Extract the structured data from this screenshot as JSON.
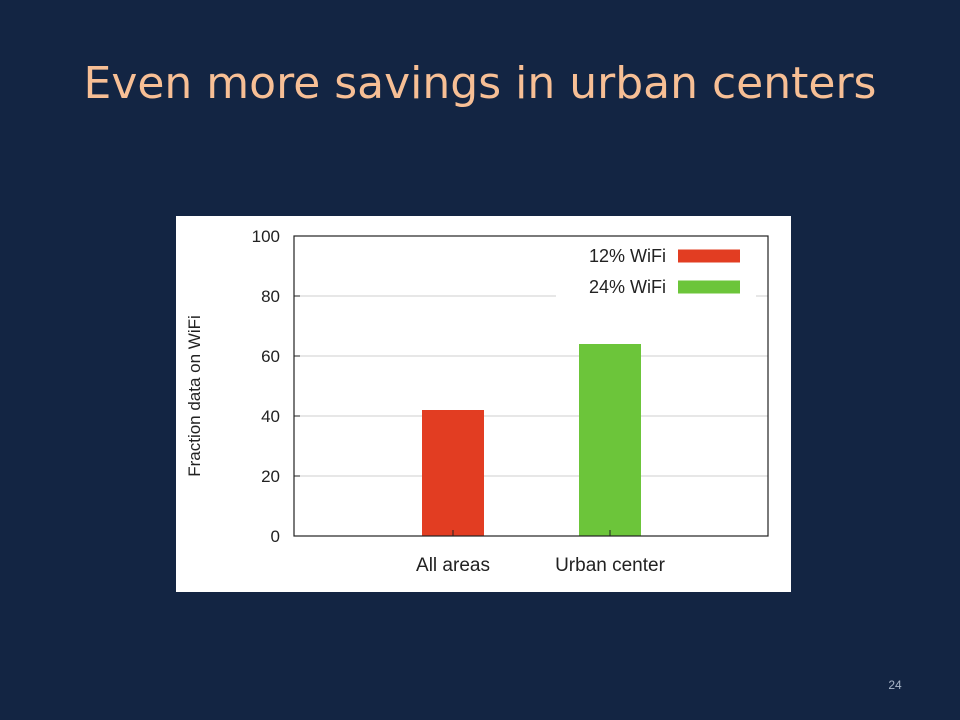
{
  "slide": {
    "title": "Even more savings in urban centers",
    "number": "24"
  },
  "colors": {
    "background": "#132543",
    "title": "#f7bf95",
    "series_12": "#e23d22",
    "series_24": "#6cc53a"
  },
  "chart_data": {
    "type": "bar",
    "categories": [
      "All areas",
      "Urban center"
    ],
    "series": [
      {
        "name": "12% WiFi",
        "category": "All areas",
        "value": 42,
        "color": "#e23d22"
      },
      {
        "name": "24% WiFi",
        "category": "Urban center",
        "value": 64,
        "color": "#6cc53a"
      }
    ],
    "ylabel": "Fraction data on WiFi",
    "xlabel": "",
    "ylim": [
      0,
      100
    ],
    "yticks": [
      0,
      20,
      40,
      60,
      80,
      100
    ],
    "grid": true,
    "legend": "top-right"
  }
}
